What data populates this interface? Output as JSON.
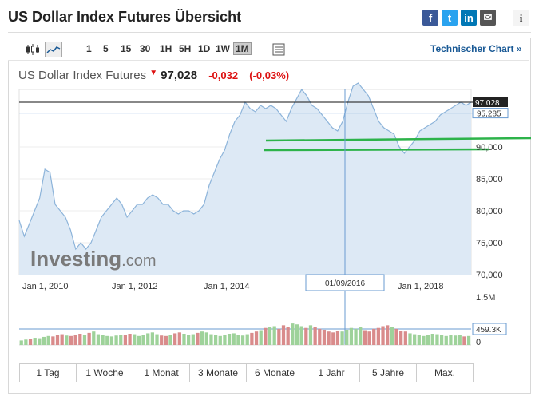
{
  "page": {
    "title": "US Dollar Index Futures Übersicht"
  },
  "share": [
    {
      "name": "facebook-icon",
      "glyph": "f",
      "color": "#3b5998"
    },
    {
      "name": "twitter-icon",
      "glyph": "t",
      "color": "#2aa3ef"
    },
    {
      "name": "linkedin-icon",
      "glyph": "in",
      "color": "#0077b5"
    },
    {
      "name": "email-icon",
      "glyph": "✉",
      "color": "#555555"
    }
  ],
  "info_glyph": "i",
  "toolbar": {
    "timeframes": [
      "1",
      "5",
      "15",
      "30",
      "1H",
      "5H",
      "1D",
      "1W",
      "1M"
    ],
    "selected": "1M",
    "technical_link": "Technischer Chart »"
  },
  "quote": {
    "name": "US Dollar Index Futures",
    "price": "97,028",
    "change": "-0,032",
    "change_pct": "(-0,03%)"
  },
  "watermark": {
    "brand": "Investing",
    "suffix": ".com"
  },
  "range_buttons": [
    "1 Tag",
    "1 Woche",
    "1 Monat",
    "3 Monate",
    "6 Monate",
    "1 Jahr",
    "5 Jahre",
    "Max."
  ],
  "chart_data": {
    "type": "area",
    "x_tick_labels": [
      "Jan 1, 2010",
      "Jan 1, 2012",
      "Jan 1, 2014",
      "Jan 1, 2018"
    ],
    "y_tick_labels": [
      "90,000",
      "85,000",
      "80,000",
      "75,000",
      "70,000"
    ],
    "ylim": [
      70,
      99
    ],
    "price_label": "97,028",
    "crosshair_price_label": "95,285",
    "crosshair_date": "01/09/2016",
    "series": [
      {
        "values": [
          78.5,
          76,
          78,
          80,
          82,
          86.5,
          86,
          81,
          80,
          79,
          77,
          74,
          75,
          74,
          75,
          77,
          79,
          80,
          81,
          82,
          81,
          79,
          80,
          81,
          81,
          82,
          82.5,
          82,
          81,
          81,
          80,
          79.5,
          80,
          80,
          79.5,
          80,
          81,
          84,
          86,
          88,
          89.5,
          92,
          94,
          95,
          97,
          96,
          95.5,
          96.5,
          96,
          96.5,
          96,
          95,
          94,
          96,
          97.5,
          99,
          98,
          96.5,
          96,
          95,
          94,
          93,
          92.5,
          94,
          97,
          99.5,
          100,
          99,
          98,
          96,
          94,
          93,
          92.5,
          92,
          90,
          89,
          90,
          91,
          92.5,
          93,
          93.5,
          94,
          95,
          95.5,
          96,
          96.5,
          97,
          96.5,
          97
        ]
      }
    ],
    "volume_axis_labels": [
      "1.5M",
      "0"
    ],
    "volume_readout": "459.3K",
    "volume": [
      0.1,
      0.12,
      0.14,
      0.16,
      0.15,
      0.18,
      0.2,
      0.19,
      0.22,
      0.24,
      0.21,
      0.2,
      0.23,
      0.25,
      0.22,
      0.27,
      0.3,
      0.24,
      0.22,
      0.2,
      0.19,
      0.21,
      0.23,
      0.22,
      0.25,
      0.24,
      0.2,
      0.22,
      0.26,
      0.28,
      0.24,
      0.21,
      0.2,
      0.23,
      0.26,
      0.28,
      0.25,
      0.22,
      0.24,
      0.27,
      0.3,
      0.28,
      0.24,
      0.22,
      0.2,
      0.23,
      0.25,
      0.26,
      0.23,
      0.21,
      0.24,
      0.27,
      0.3,
      0.33,
      0.38,
      0.4,
      0.42,
      0.36,
      0.44,
      0.4,
      0.48,
      0.46,
      0.42,
      0.38,
      0.44,
      0.4,
      0.36,
      0.34,
      0.3,
      0.28,
      0.32,
      0.3,
      0.34,
      0.38,
      0.36,
      0.4,
      0.33,
      0.3,
      0.36,
      0.38,
      0.42,
      0.44,
      0.4,
      0.36,
      0.32,
      0.3,
      0.26,
      0.24,
      0.22,
      0.2,
      0.22,
      0.25,
      0.24,
      0.22,
      0.2,
      0.23,
      0.21,
      0.22,
      0.19,
      0.2
    ]
  }
}
